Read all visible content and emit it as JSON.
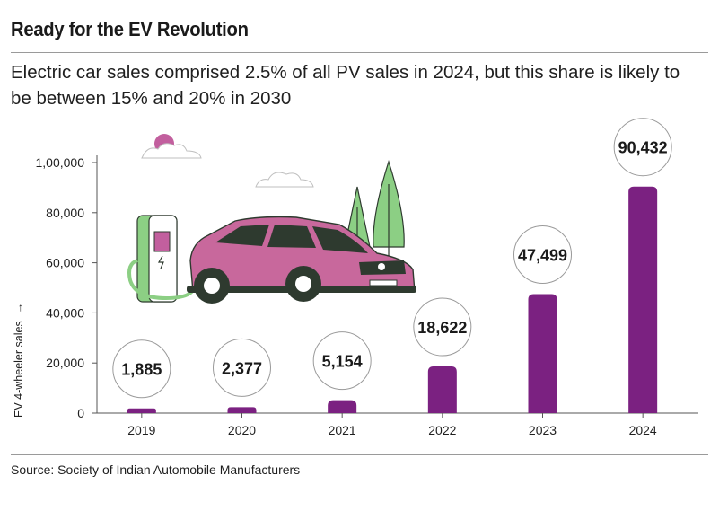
{
  "header": {
    "title": "Ready for the EV Revolution",
    "subtitle": "Electric car sales comprised 2.5% of all PV sales in 2024, but this share is likely to be between 15% and 20% in 2030"
  },
  "footer": {
    "source": "Source: Society of Indian Automobile Manufacturers"
  },
  "colors": {
    "bar": "#7b2181",
    "car_body": "#c8689c",
    "tree": "#8ccf84",
    "sun": "#c25f9e",
    "charger": "#8ccf84"
  },
  "chart_data": {
    "type": "bar",
    "categories": [
      "2019",
      "2020",
      "2021",
      "2022",
      "2023",
      "2024"
    ],
    "values": [
      1885,
      2377,
      5154,
      18622,
      47499,
      90432
    ],
    "data_labels": [
      "1,885",
      "2,377",
      "5,154",
      "18,622",
      "47,499",
      "90,432"
    ],
    "ylabel": "EV 4-wheeler sales",
    "ylabel_arrow": "→",
    "ylim": [
      0,
      100000
    ],
    "yticks": [
      0,
      20000,
      40000,
      60000,
      80000,
      100000
    ],
    "ytick_labels": [
      "0",
      "20,000",
      "40,000",
      "60,000",
      "80,000",
      "1,00,000"
    ],
    "grid": false,
    "legend": "none"
  }
}
